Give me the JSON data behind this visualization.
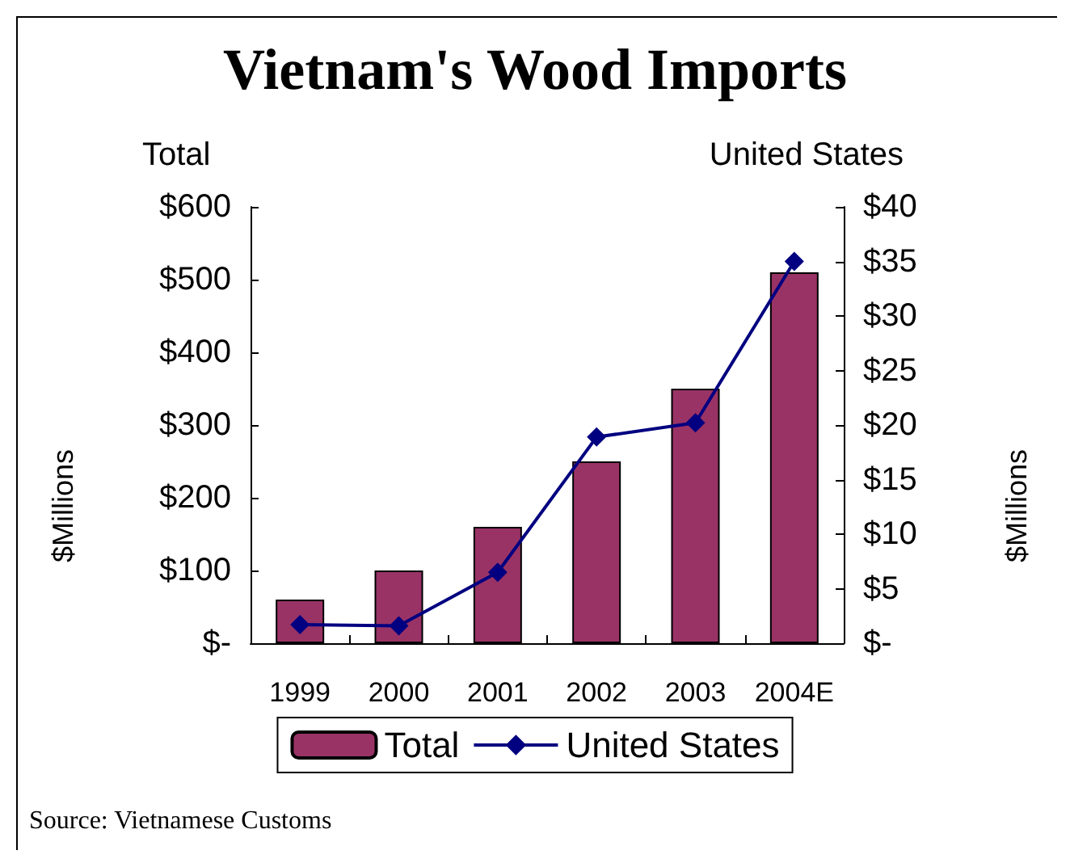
{
  "chart_data": {
    "type": "bar",
    "title": "Vietnam's Wood Imports",
    "ylabel": "$Millions",
    "y2label": "$Millions",
    "categories": [
      "1999",
      "2000",
      "2001",
      "2002",
      "2003",
      "2004E"
    ],
    "series": [
      {
        "name": "Total",
        "color": "#993366",
        "values": [
          60,
          100,
          160,
          250,
          350,
          510
        ]
      },
      {
        "name": "United States",
        "type": "line",
        "axis": "y2",
        "color": "#000080",
        "values": [
          1.7,
          1.6,
          6.5,
          18.9,
          20.2,
          35.0
        ]
      }
    ],
    "ylim": [
      0,
      600
    ],
    "yticks": [
      {
        "value": 0,
        "label": "$-"
      },
      {
        "value": 100,
        "label": "$100"
      },
      {
        "value": 200,
        "label": "$200"
      },
      {
        "value": 300,
        "label": "$300"
      },
      {
        "value": 400,
        "label": "$400"
      },
      {
        "value": 500,
        "label": "$500"
      },
      {
        "value": 600,
        "label": "$600"
      }
    ],
    "y2lim": [
      0,
      40
    ],
    "y2ticks": [
      {
        "value": 0,
        "label": "$-"
      },
      {
        "value": 5,
        "label": "$5"
      },
      {
        "value": 10,
        "label": "$10"
      },
      {
        "value": 15,
        "label": "$15"
      },
      {
        "value": 20,
        "label": "$20"
      },
      {
        "value": 25,
        "label": "$25"
      },
      {
        "value": 30,
        "label": "$30"
      },
      {
        "value": 35,
        "label": "$35"
      },
      {
        "value": 40,
        "label": "$40"
      }
    ],
    "marker": "diamond",
    "legend": "bottom",
    "grid": false,
    "annotations": [
      "Total",
      "United States",
      "Source: Vietnamese Customs"
    ]
  }
}
